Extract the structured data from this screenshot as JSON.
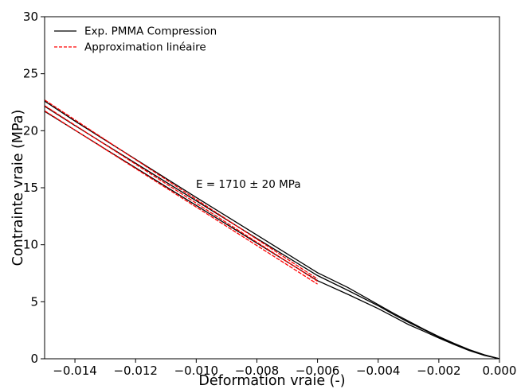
{
  "chart_data": {
    "type": "line",
    "title": "",
    "xlabel": "Déformation vraie (-)",
    "ylabel": "Contrainte vraie (MPa)",
    "xlim": [
      -0.015,
      0.0
    ],
    "ylim": [
      0,
      30
    ],
    "xticks": [
      -0.014,
      -0.012,
      -0.01,
      -0.008,
      -0.006,
      -0.004,
      -0.002,
      0.0
    ],
    "xtick_labels": [
      "−0.014",
      "−0.012",
      "−0.010",
      "−0.008",
      "−0.006",
      "−0.004",
      "−0.002",
      "0.000"
    ],
    "yticks": [
      0,
      5,
      10,
      15,
      20,
      25,
      30
    ],
    "ytick_labels": [
      "0",
      "5",
      "10",
      "15",
      "20",
      "25",
      "30"
    ],
    "grid": false,
    "legend_position": "top-left",
    "annotation": {
      "text": "E = 1710 ± 20 MPa",
      "x": -0.01,
      "y": 15.0
    },
    "series": [
      {
        "name": "Exp. PMMA Compression",
        "color": "#000000",
        "style": "solid",
        "curves": [
          {
            "x": [
              0.0,
              -0.0005,
              -0.001,
              -0.0015,
              -0.002,
              -0.0025,
              -0.003,
              -0.0035,
              -0.004,
              -0.005,
              -0.006,
              -0.008,
              -0.01,
              -0.012,
              -0.014,
              -0.015
            ],
            "y": [
              0.0,
              0.35,
              0.8,
              1.35,
              1.95,
              2.6,
              3.3,
              4.0,
              4.75,
              6.25,
              7.55,
              10.85,
              14.15,
              17.5,
              20.85,
              22.6
            ]
          },
          {
            "x": [
              0.0,
              -0.0005,
              -0.001,
              -0.0015,
              -0.002,
              -0.0025,
              -0.003,
              -0.0035,
              -0.004,
              -0.005,
              -0.006,
              -0.008,
              -0.01,
              -0.012,
              -0.014,
              -0.015
            ],
            "y": [
              0.0,
              0.33,
              0.77,
              1.3,
              1.9,
              2.55,
              3.2,
              3.9,
              4.65,
              6.0,
              7.3,
              10.55,
              13.85,
              17.15,
              20.45,
              22.15
            ]
          },
          {
            "x": [
              0.0,
              -0.0005,
              -0.001,
              -0.0015,
              -0.002,
              -0.0025,
              -0.003,
              -0.0035,
              -0.004,
              -0.005,
              -0.006,
              -0.008,
              -0.01,
              -0.012,
              -0.014,
              -0.015
            ],
            "y": [
              0.0,
              0.3,
              0.72,
              1.25,
              1.82,
              2.42,
              3.0,
              3.7,
              4.4,
              5.65,
              6.85,
              10.15,
              13.45,
              16.75,
              20.05,
              21.7
            ]
          }
        ]
      },
      {
        "name": "Approximation linéaire",
        "color": "#ff0000",
        "style": "dashed",
        "curves": [
          {
            "x": [
              -0.015,
              -0.006
            ],
            "y": [
              22.7,
              7.0
            ]
          },
          {
            "x": [
              -0.015,
              -0.006
            ],
            "y": [
              22.2,
              6.8
            ]
          },
          {
            "x": [
              -0.015,
              -0.006
            ],
            "y": [
              21.75,
              6.55
            ]
          }
        ]
      }
    ]
  }
}
